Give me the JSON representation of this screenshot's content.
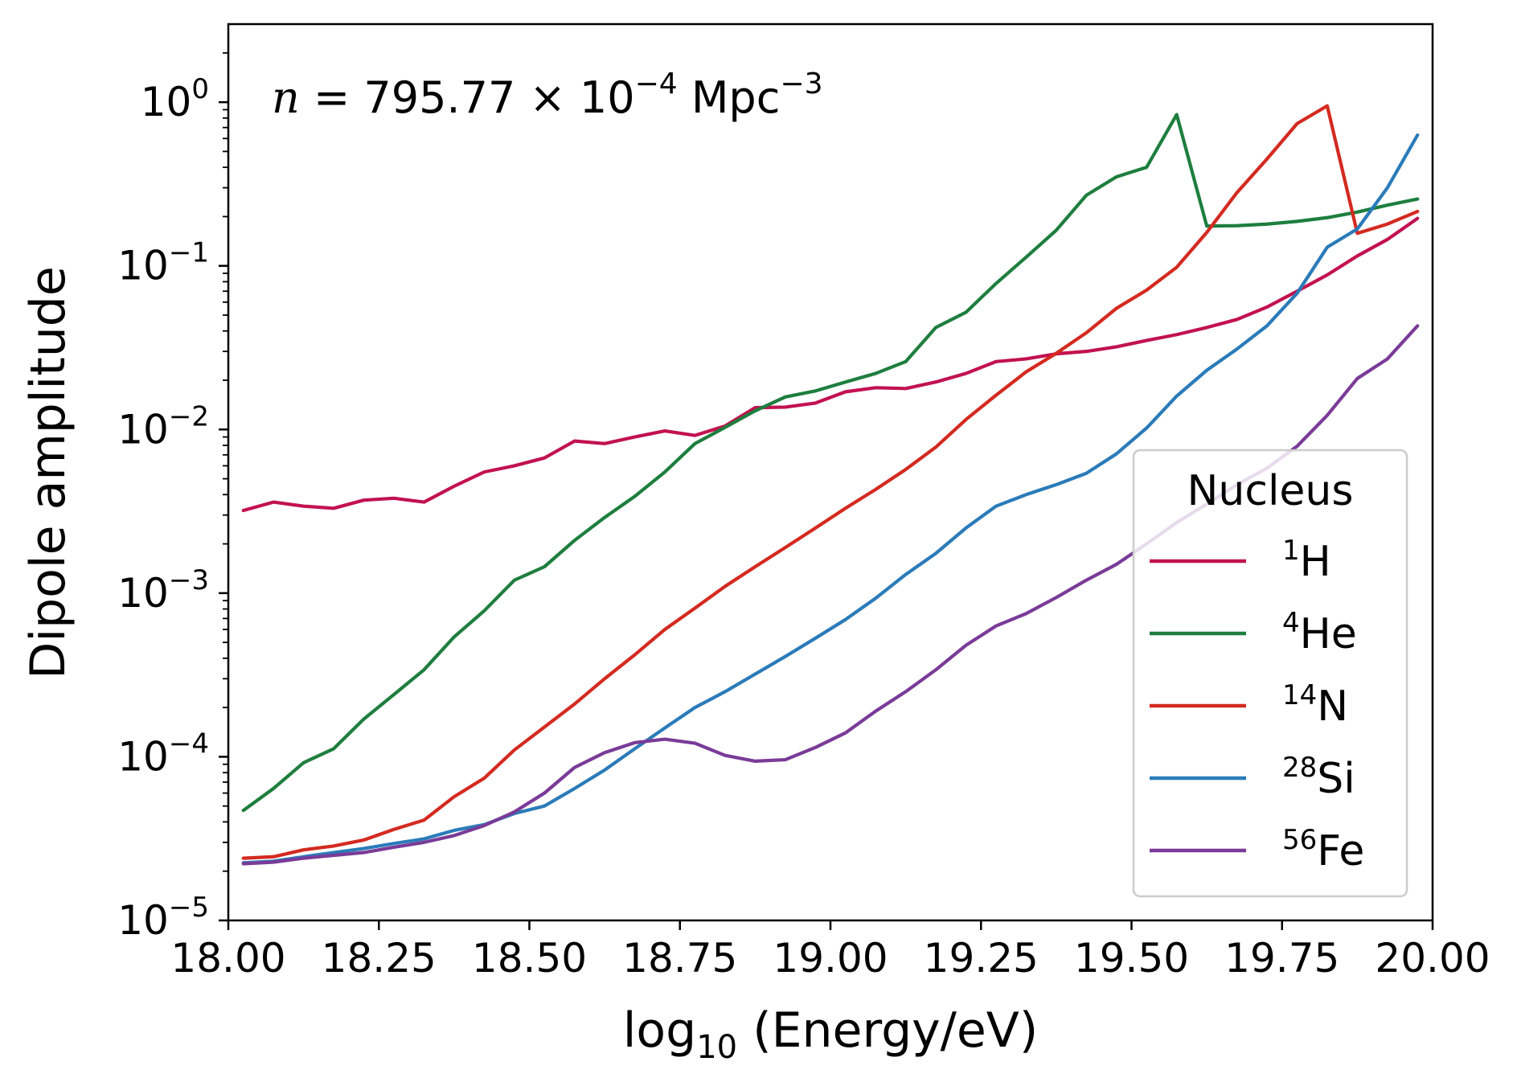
{
  "chart_data": {
    "type": "line",
    "title": "",
    "annotation": {
      "n_symbol": "n",
      "equals_value": " = 795.77 × 10",
      "value_exponent": "−4",
      "unit": " Mpc",
      "unit_exponent": "−3"
    },
    "xlabel": {
      "prefix": "log",
      "subscript": "10",
      "suffix": " (Energy/eV)"
    },
    "ylabel": "Dipole amplitude",
    "xlim": [
      18.0,
      20.0
    ],
    "ylim": [
      1e-05,
      3.0
    ],
    "yscale": "log",
    "grid": false,
    "x_ticks": [
      18.0,
      18.25,
      18.5,
      18.75,
      19.0,
      19.25,
      19.5,
      19.75,
      20.0
    ],
    "x_tick_labels": [
      "18.00",
      "18.25",
      "18.50",
      "18.75",
      "19.00",
      "19.25",
      "19.50",
      "19.75",
      "20.00"
    ],
    "y_ticks": [
      {
        "value": 1e-05,
        "base": "10",
        "exp": "−5"
      },
      {
        "value": 0.0001,
        "base": "10",
        "exp": "−4"
      },
      {
        "value": 0.001,
        "base": "10",
        "exp": "−3"
      },
      {
        "value": 0.01,
        "base": "10",
        "exp": "−2"
      },
      {
        "value": 0.1,
        "base": "10",
        "exp": "−1"
      },
      {
        "value": 1.0,
        "base": "10",
        "exp": "0"
      }
    ],
    "legend": {
      "title": "Nucleus",
      "placement": "lower-right"
    },
    "x": [
      18.025,
      18.075,
      18.125,
      18.175,
      18.225,
      18.275,
      18.325,
      18.375,
      18.425,
      18.475,
      18.525,
      18.575,
      18.625,
      18.675,
      18.725,
      18.775,
      18.825,
      18.875,
      18.925,
      18.975,
      19.025,
      19.075,
      19.125,
      19.175,
      19.225,
      19.275,
      19.325,
      19.375,
      19.425,
      19.475,
      19.525,
      19.575,
      19.625,
      19.675,
      19.725,
      19.775,
      19.825,
      19.875,
      19.925,
      19.975
    ],
    "series": [
      {
        "name": "H",
        "mass": "1",
        "color": "#c2124f",
        "values": [
          0.0032,
          0.0036,
          0.0034,
          0.0033,
          0.0037,
          0.0038,
          0.0036,
          0.0045,
          0.0055,
          0.006,
          0.0067,
          0.0085,
          0.0082,
          0.009,
          0.0098,
          0.0092,
          0.0105,
          0.0136,
          0.0137,
          0.0145,
          0.017,
          0.018,
          0.0178,
          0.0195,
          0.022,
          0.026,
          0.027,
          0.029,
          0.03,
          0.032,
          0.035,
          0.038,
          0.042,
          0.047,
          0.056,
          0.07,
          0.088,
          0.115,
          0.145,
          0.195
        ]
      },
      {
        "name": "He",
        "mass": "4",
        "color": "#1e7e3e",
        "values": [
          4.7e-05,
          6.4e-05,
          9.2e-05,
          0.000112,
          0.00017,
          0.00024,
          0.00034,
          0.00054,
          0.00078,
          0.0012,
          0.00145,
          0.0021,
          0.0029,
          0.0039,
          0.0055,
          0.0082,
          0.0103,
          0.013,
          0.0158,
          0.0172,
          0.0195,
          0.022,
          0.026,
          0.042,
          0.052,
          0.078,
          0.113,
          0.165,
          0.27,
          0.35,
          0.4,
          0.84,
          0.175,
          0.176,
          0.18,
          0.187,
          0.197,
          0.213,
          0.235,
          0.256
        ]
      },
      {
        "name": "N",
        "mass": "14",
        "color": "#d42a20",
        "values": [
          2.4e-05,
          2.45e-05,
          2.7e-05,
          2.85e-05,
          3.1e-05,
          3.6e-05,
          4.1e-05,
          5.7e-05,
          7.4e-05,
          0.00011,
          0.000152,
          0.00021,
          0.0003,
          0.00042,
          0.0006,
          0.00081,
          0.0011,
          0.00145,
          0.0019,
          0.0025,
          0.0033,
          0.0043,
          0.0057,
          0.0078,
          0.0115,
          0.0162,
          0.0225,
          0.0292,
          0.039,
          0.055,
          0.071,
          0.098,
          0.16,
          0.28,
          0.45,
          0.74,
          0.95,
          0.158,
          0.18,
          0.215
        ]
      },
      {
        "name": "Si",
        "mass": "28",
        "color": "#2b7bb9",
        "values": [
          2.25e-05,
          2.3e-05,
          2.45e-05,
          2.6e-05,
          2.75e-05,
          2.95e-05,
          3.15e-05,
          3.55e-05,
          3.85e-05,
          4.5e-05,
          5e-05,
          6.4e-05,
          8.3e-05,
          0.000112,
          0.00015,
          0.0002,
          0.00025,
          0.00032,
          0.00041,
          0.00053,
          0.00069,
          0.00093,
          0.0013,
          0.00175,
          0.0025,
          0.0034,
          0.004,
          0.0046,
          0.0054,
          0.0071,
          0.0102,
          0.016,
          0.023,
          0.031,
          0.043,
          0.068,
          0.13,
          0.168,
          0.3,
          0.63
        ]
      },
      {
        "name": "Fe",
        "mass": "56",
        "color": "#7a3b98",
        "values": [
          2.22e-05,
          2.27e-05,
          2.4e-05,
          2.5e-05,
          2.6e-05,
          2.8e-05,
          3e-05,
          3.3e-05,
          3.8e-05,
          4.6e-05,
          6e-05,
          8.6e-05,
          0.000106,
          0.000122,
          0.000128,
          0.000121,
          0.000102,
          9.4e-05,
          9.6e-05,
          0.000114,
          0.00014,
          0.00019,
          0.00025,
          0.00034,
          0.00048,
          0.00063,
          0.00075,
          0.00094,
          0.0012,
          0.0015,
          0.002,
          0.0027,
          0.0035,
          0.0046,
          0.0058,
          0.0079,
          0.0122,
          0.0205,
          0.027,
          0.043
        ]
      }
    ]
  }
}
